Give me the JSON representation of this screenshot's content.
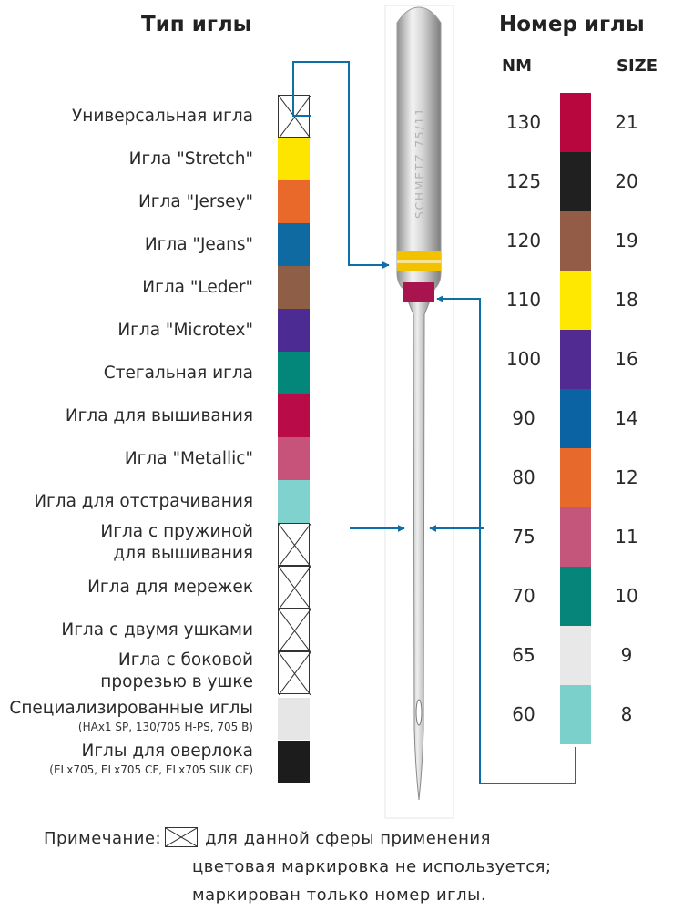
{
  "headers": {
    "type": "Тип иглы",
    "number": "Номер иглы",
    "nm": "NM",
    "size": "SIZE"
  },
  "needle_types": [
    {
      "label": [
        "Универсальная игла"
      ],
      "color": null
    },
    {
      "label": [
        "Игла \"Stretch\""
      ],
      "color": "#fde500"
    },
    {
      "label": [
        "Игла \"Jersey\""
      ],
      "color": "#e9692a"
    },
    {
      "label": [
        "Игла \"Jeans\""
      ],
      "color": "#0f6aa2"
    },
    {
      "label": [
        "Игла \"Leder\""
      ],
      "color": "#8f5e47"
    },
    {
      "label": [
        "Игла \"Microtex\""
      ],
      "color": "#4c2c93"
    },
    {
      "label": [
        "Стегальная игла"
      ],
      "color": "#03877a"
    },
    {
      "label": [
        "Игла для вышивания"
      ],
      "color": "#b90b48"
    },
    {
      "label": [
        "Игла \"Metallic\""
      ],
      "color": "#c8537a"
    },
    {
      "label": [
        "Игла для отстрачивания"
      ],
      "color": "#7fd2cd"
    },
    {
      "label": [
        "Игла с пружиной",
        "для вышивания"
      ],
      "color": null
    },
    {
      "label": [
        "Игла для мережек"
      ],
      "color": null
    },
    {
      "label": [
        "Игла с двумя ушками"
      ],
      "color": null
    },
    {
      "label": [
        "Игла с боковой",
        "прорезью в ушке"
      ],
      "color": null
    },
    {
      "label": [
        "Специализированные иглы",
        "(HAx1 SP, 130/705 H-PS, 705 B)"
      ],
      "color": "#e6e6e6"
    },
    {
      "label": [
        "Иглы для оверлока",
        "(ELx705, ELx705 CF, ELx705 SUK CF)"
      ],
      "color": "#1c1c1c"
    }
  ],
  "sizes": [
    {
      "nm": "130",
      "size": "21",
      "color": "#b8063f"
    },
    {
      "nm": "125",
      "size": "20",
      "color": "#202020"
    },
    {
      "nm": "120",
      "size": "19",
      "color": "#935c47"
    },
    {
      "nm": "110",
      "size": "18",
      "color": "#fee700"
    },
    {
      "nm": "100",
      "size": "16",
      "color": "#512b92"
    },
    {
      "nm": "90",
      "size": "14",
      "color": "#0c63a3"
    },
    {
      "nm": "80",
      "size": "12",
      "color": "#e8692c"
    },
    {
      "nm": "75",
      "size": "11",
      "color": "#c4557b"
    },
    {
      "nm": "70",
      "size": "10",
      "color": "#06857a"
    },
    {
      "nm": "65",
      "size": "9",
      "color": "#e8e8e8"
    },
    {
      "nm": "60",
      "size": "8",
      "color": "#7bd0cb"
    }
  ],
  "needle": {
    "imprint": "SCHMETZ 75/11",
    "type_band": "#f2c200",
    "size_band": "#a8144d"
  },
  "arrow_color": "#0e6fa8",
  "note": {
    "prefix": "Примечание:",
    "line1": "для данной сферы применения",
    "line2": "цветовая маркировка не используется;",
    "line3": "маркирован только номер иглы."
  }
}
